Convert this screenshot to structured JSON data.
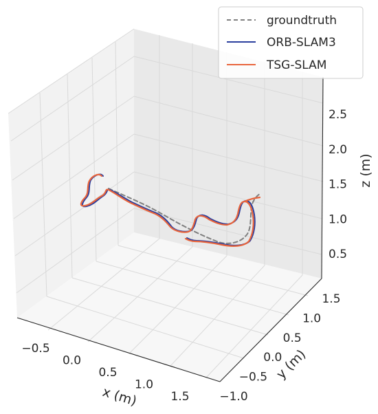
{
  "chart_data": {
    "type": "line",
    "projection": "3d",
    "title": "",
    "xlabel": "x (m)",
    "ylabel": "y (m)",
    "zlabel": "z (m)",
    "x_ticks": [
      "−0.5",
      "0.0",
      "0.5",
      "1.0",
      "1.5"
    ],
    "y_ticks": [
      "−1.0",
      "−0.5",
      "0.0",
      "0.5",
      "1.0",
      "1.5"
    ],
    "z_ticks": [
      "0.5",
      "1.0",
      "1.5",
      "2.0",
      "2.5"
    ],
    "legend_placement": "top-right",
    "grid": true,
    "series": [
      {
        "name": "groundtruth",
        "style": "dashed",
        "color": "#7f7f7f"
      },
      {
        "name": "ORB-SLAM3",
        "style": "solid",
        "color": "#2b3f9e"
      },
      {
        "name": "TSG-SLAM",
        "style": "solid",
        "color": "#e8643c"
      }
    ]
  }
}
